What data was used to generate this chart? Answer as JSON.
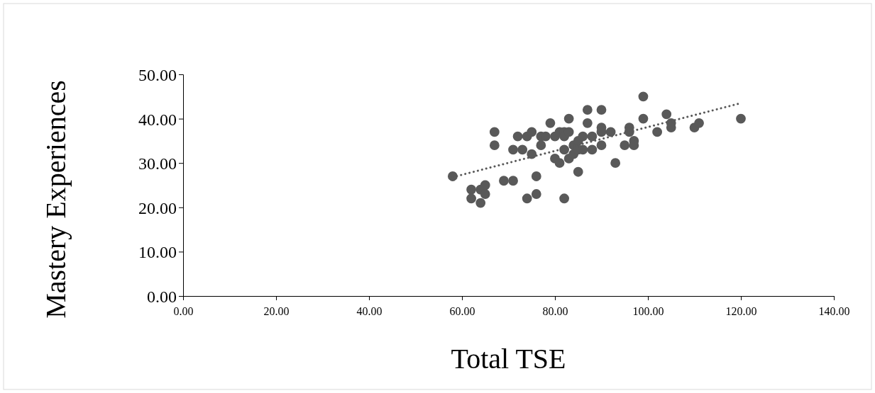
{
  "chart_data": {
    "type": "scatter",
    "xlabel": "Total TSE",
    "ylabel": "Mastery Experiences",
    "xlim": [
      0,
      140
    ],
    "xticks": [
      {
        "value": 0,
        "label": "0.00"
      },
      {
        "value": 20,
        "label": "20.00"
      },
      {
        "value": 40,
        "label": "40.00"
      },
      {
        "value": 60,
        "label": "60.00"
      },
      {
        "value": 80,
        "label": "80.00"
      },
      {
        "value": 100,
        "label": "100.00"
      },
      {
        "value": 120,
        "label": "120.00"
      },
      {
        "value": 140,
        "label": "140.00"
      }
    ],
    "ylim": [
      0,
      50
    ],
    "yticks": [
      {
        "value": 0,
        "label": "0.00"
      },
      {
        "value": 10,
        "label": "10.00"
      },
      {
        "value": 20,
        "label": "20.00"
      },
      {
        "value": 30,
        "label": "30.00"
      },
      {
        "value": 40,
        "label": "40.00"
      },
      {
        "value": 50,
        "label": "50.00"
      }
    ],
    "grid": false,
    "marker": "circle",
    "series": [
      {
        "color": "#595959",
        "x": [
          58,
          62,
          62,
          64,
          64,
          65,
          65,
          67,
          67,
          69,
          71,
          71,
          72,
          73,
          74,
          74,
          75,
          75,
          76,
          76,
          77,
          77,
          78,
          79,
          80,
          80,
          81,
          81,
          82,
          82,
          82,
          82,
          83,
          83,
          83,
          84,
          84,
          85,
          85,
          85,
          86,
          86,
          87,
          87,
          88,
          88,
          90,
          90,
          90,
          90,
          92,
          93,
          95,
          96,
          96,
          97,
          97,
          99,
          99,
          102,
          104,
          105,
          105,
          110,
          111,
          120
        ],
        "values": [
          27,
          24,
          22,
          21,
          24,
          25,
          23,
          37,
          34,
          26,
          26,
          33,
          36,
          33,
          36,
          22,
          37,
          32,
          27,
          23,
          36,
          34,
          36,
          39,
          36,
          31,
          30,
          37,
          37,
          36,
          33,
          22,
          40,
          37,
          31,
          34,
          32,
          35,
          33,
          28,
          36,
          33,
          42,
          39,
          36,
          33,
          42,
          38,
          37,
          34,
          37,
          30,
          34,
          38,
          37,
          35,
          34,
          45,
          40,
          37,
          41,
          39,
          38,
          38,
          39,
          40
        ]
      },
      {
        "type": "line",
        "color": "#595959",
        "line_style": "dotted",
        "marker": "none",
        "x": [
          58,
          120
        ],
        "values": [
          26.8,
          43.5
        ]
      }
    ]
  }
}
